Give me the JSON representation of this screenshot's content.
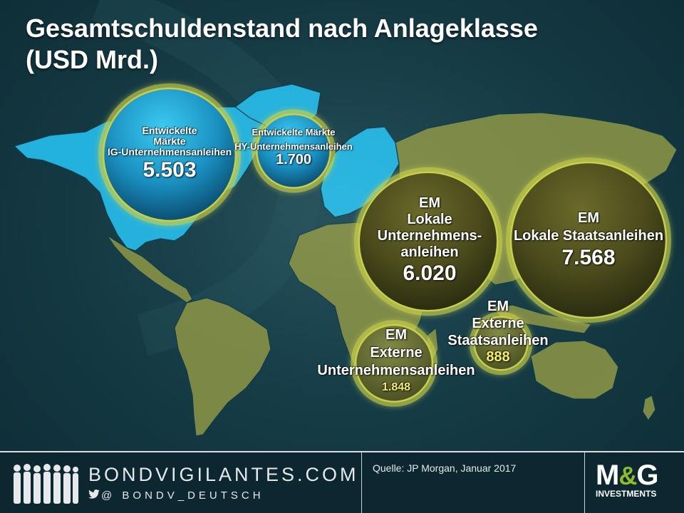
{
  "title": {
    "line1": "Gesamtschuldenstand nach Anlageklasse",
    "line2": "(USD Mrd.)"
  },
  "colors": {
    "developed_fill": "#1fb4e0",
    "em_fill": "#7d8a45",
    "bubble_ring": "#c8cf4a",
    "value_yellow": "#f4ee6a"
  },
  "chart_data": {
    "type": "bubble",
    "title": "Gesamtschuldenstand nach Anlageklasse (USD Mrd.)",
    "unit": "USD Mrd.",
    "series": [
      {
        "label_lines": [
          "Entwickelte",
          "Märkte",
          "IG-Unternehmensanleihen"
        ],
        "value": 5503,
        "value_label": "5.503",
        "group": "developed"
      },
      {
        "label_lines": [
          "Entwickelte Märkte",
          "HY-Unternehmensanleihen"
        ],
        "value": 1700,
        "value_label": "1.700",
        "group": "developed"
      },
      {
        "label_lines": [
          "EM",
          "Lokale",
          "Unternehmens-",
          "anleihen"
        ],
        "value": 6020,
        "value_label": "6.020",
        "group": "em"
      },
      {
        "label_lines": [
          "EM",
          "Lokale Staatsanleihen"
        ],
        "value": 7568,
        "value_label": "7.568",
        "group": "em"
      },
      {
        "label_lines": [
          "EM",
          "Externe",
          "Staatsanleihen"
        ],
        "value": 888,
        "value_label": "888",
        "group": "em"
      },
      {
        "label_lines": [
          "EM",
          "Externe",
          "Unternehmensanleihen"
        ],
        "value": 1848,
        "value_label": "1.848",
        "group": "em"
      }
    ]
  },
  "footer": {
    "brand": "BONDVIGILANTES.COM",
    "handle_prefix": "@",
    "handle": "BONDV_DEUTSCH",
    "source": "Quelle: JP Morgan, Januar 2017",
    "logo": {
      "m": "M",
      "amp": "&",
      "g": "G",
      "sub": "INVESTMENTS"
    }
  }
}
